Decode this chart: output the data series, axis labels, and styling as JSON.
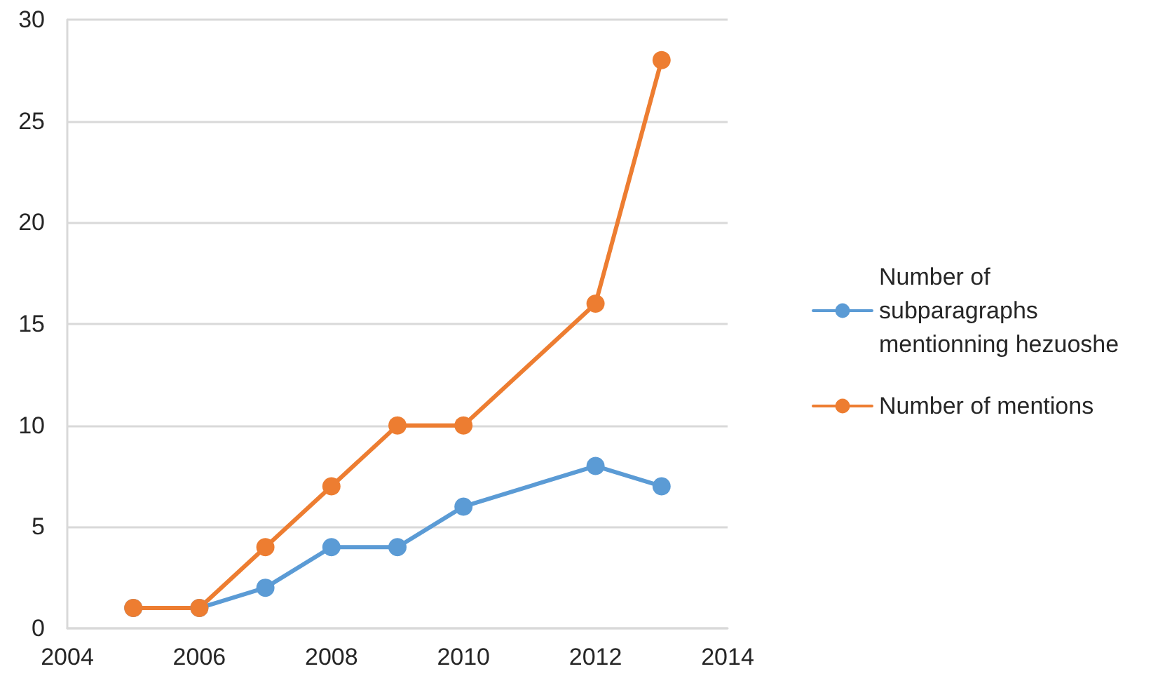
{
  "chart_data": {
    "type": "line",
    "x": [
      2005,
      2006,
      2007,
      2008,
      2009,
      2010,
      2012,
      2013
    ],
    "series": [
      {
        "name": "Number of subparagraphs mentionning hezuoshe",
        "color": "#5b9bd5",
        "values": [
          1,
          1,
          2,
          4,
          4,
          6,
          8,
          7
        ]
      },
      {
        "name": "Number of mentions",
        "color": "#ed7d31",
        "values": [
          1,
          1,
          4,
          7,
          10,
          10,
          16,
          28
        ]
      }
    ],
    "xlim": [
      2004,
      2014
    ],
    "xticks": [
      2004,
      2006,
      2008,
      2010,
      2012,
      2014
    ],
    "ylim": [
      0,
      30
    ],
    "yticks": [
      0,
      5,
      10,
      15,
      20,
      25,
      30
    ],
    "grid": "y",
    "legend": "right",
    "marker": "circle",
    "line_style": "solid"
  }
}
